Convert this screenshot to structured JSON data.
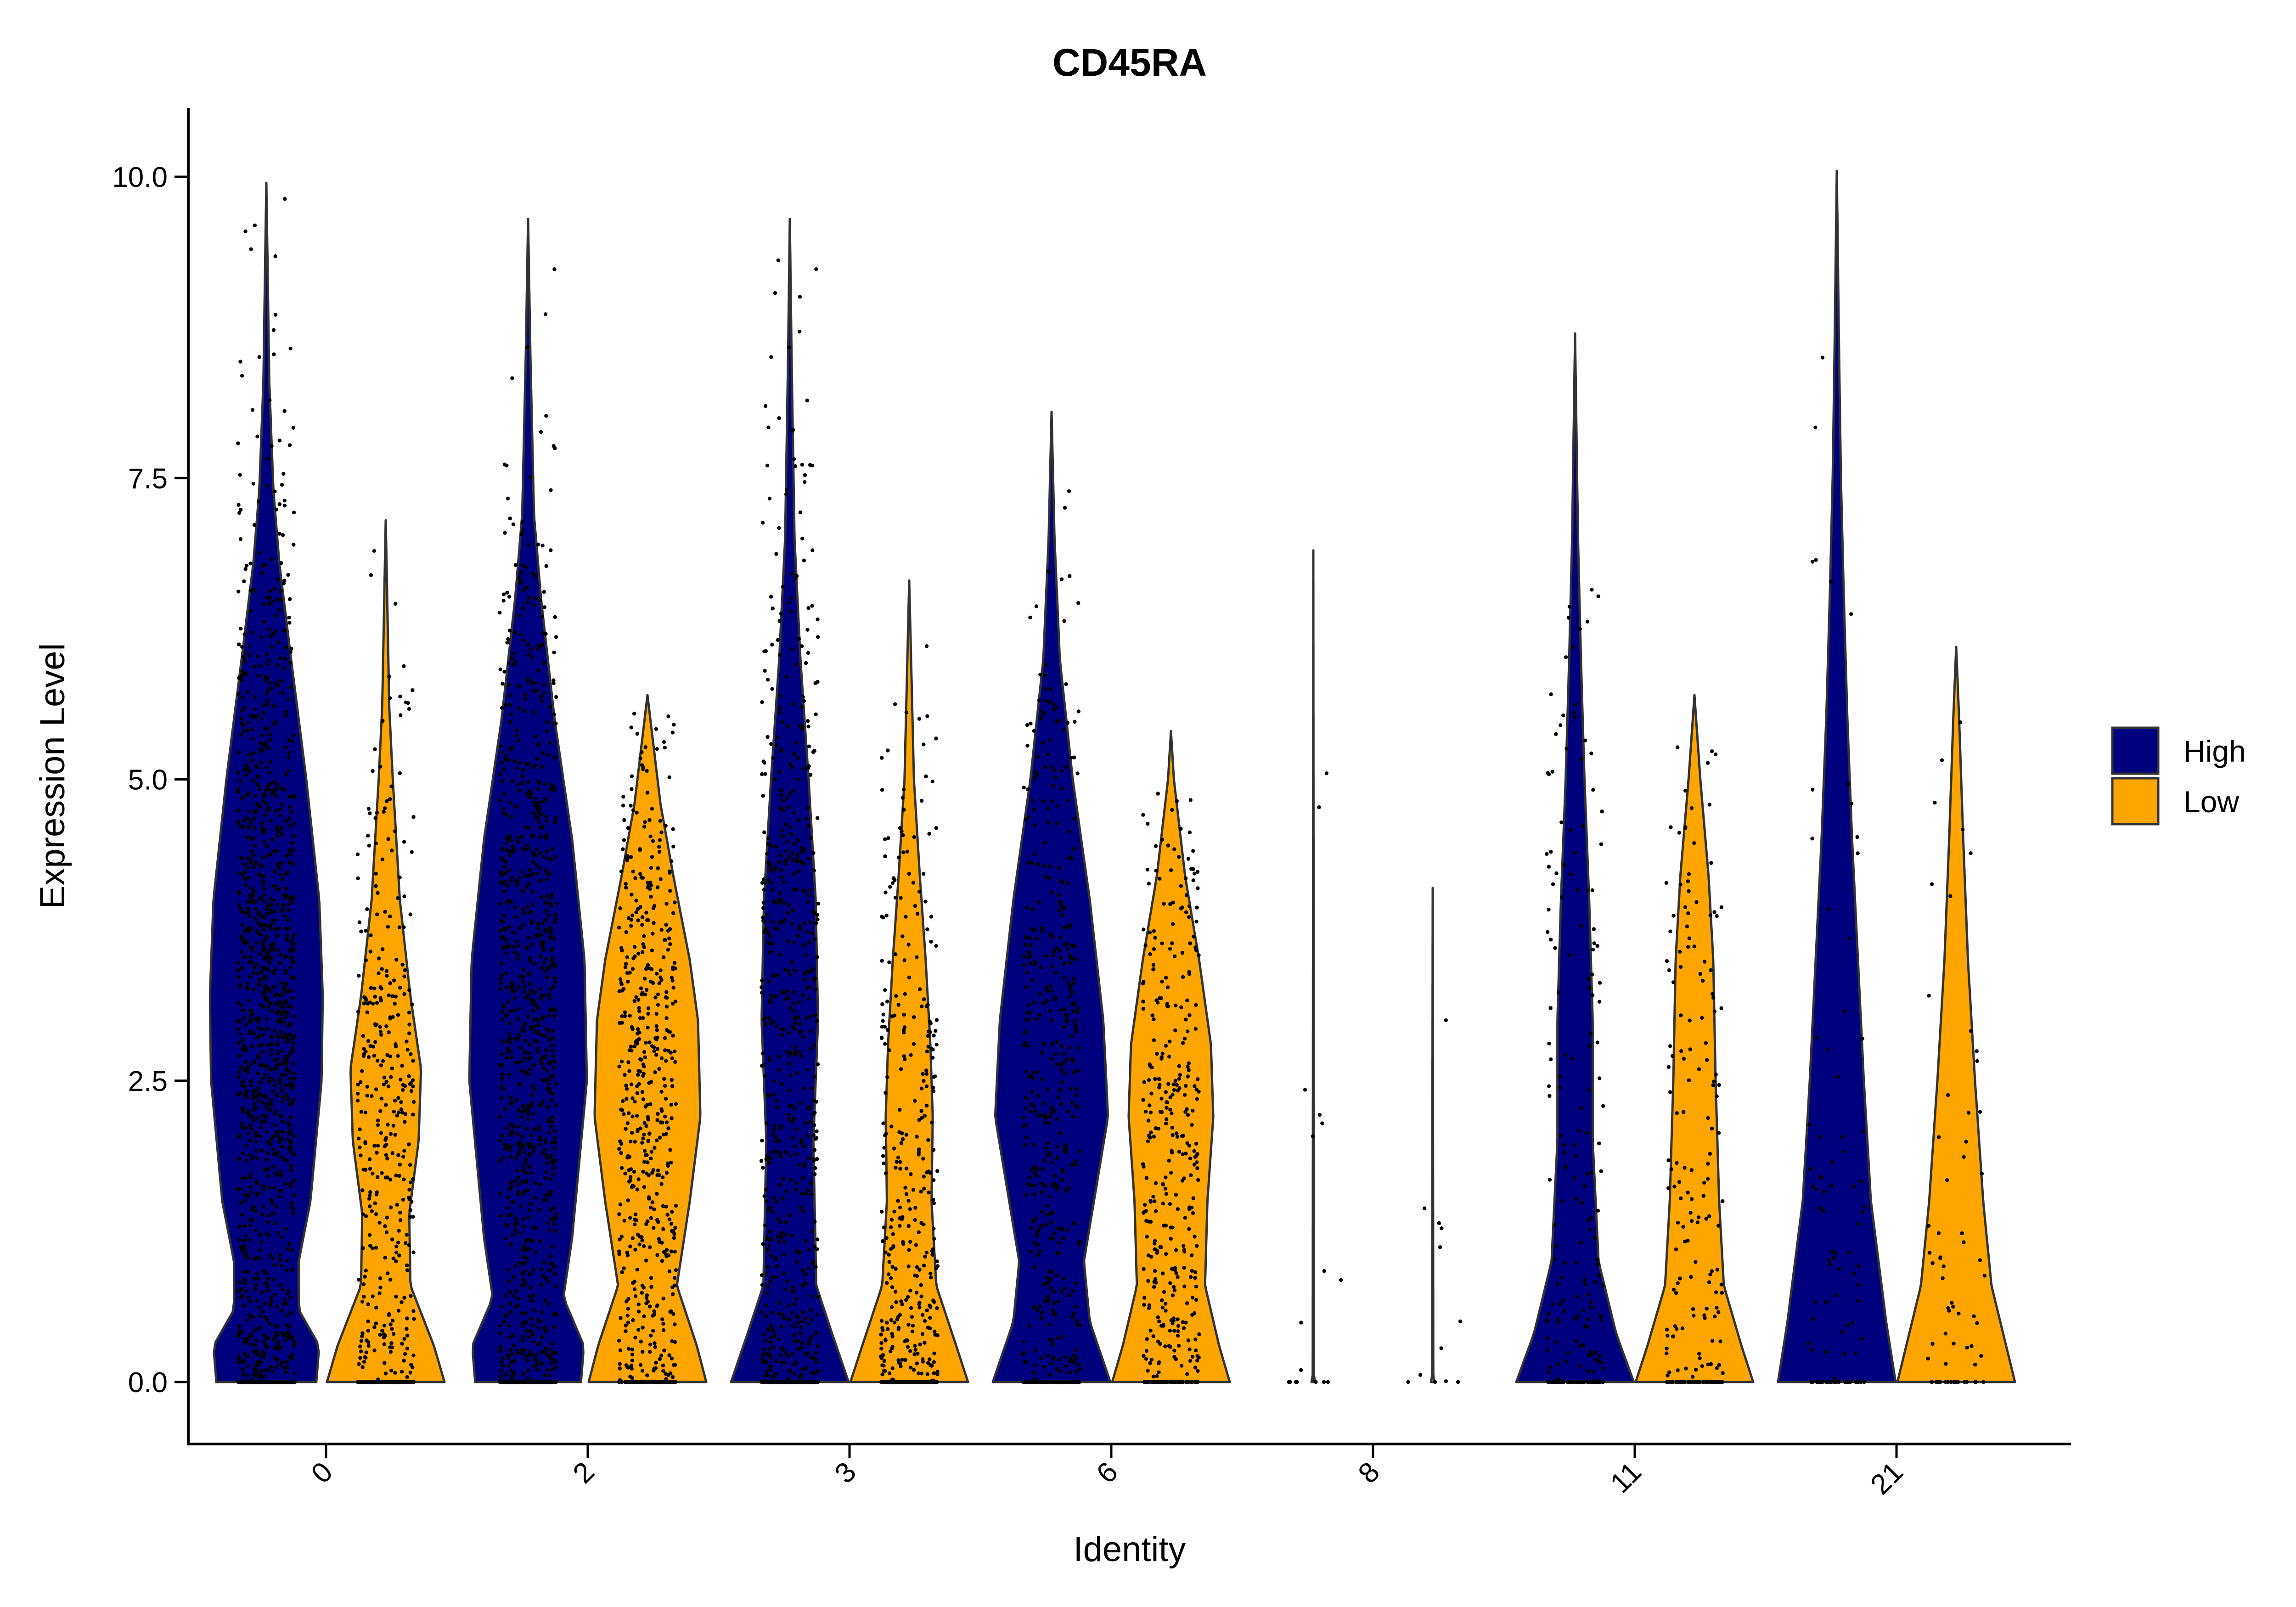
{
  "chart_data": {
    "type": "violin",
    "title": "CD45RA",
    "xlabel": "Identity",
    "ylabel": "Expression Level",
    "ylim": [
      -0.5,
      10.6
    ],
    "yticks": [
      0.0,
      2.5,
      5.0,
      7.5,
      10.0
    ],
    "ytick_labels": [
      "0.0",
      "2.5",
      "5.0",
      "7.5",
      "10.0"
    ],
    "categories": [
      "0",
      "2",
      "3",
      "6",
      "8",
      "11",
      "21"
    ],
    "legend": {
      "position": "right",
      "entries": [
        {
          "name": "High",
          "color": "#00007F"
        },
        {
          "name": "Low",
          "color": "#FFA500"
        }
      ]
    },
    "grid": false,
    "jitter_points": true,
    "series": [
      {
        "name": "High",
        "color": "#00007F",
        "max": [
          9.95,
          9.65,
          9.65,
          8.05,
          6.9,
          8.7,
          10.05
        ],
        "cell_count_relative": [
          1.0,
          0.8,
          0.6,
          0.4,
          0.04,
          0.18,
          0.07
        ],
        "profiles": [
          [
            [
              0,
              0.85
            ],
            [
              0.3,
              0.9
            ],
            [
              0.6,
              0.55
            ],
            [
              1.0,
              0.55
            ],
            [
              1.5,
              0.75
            ],
            [
              2.5,
              0.94
            ],
            [
              3.2,
              0.96
            ],
            [
              4.0,
              0.9
            ],
            [
              5.0,
              0.68
            ],
            [
              6.0,
              0.42
            ],
            [
              6.8,
              0.22
            ],
            [
              7.4,
              0.12
            ],
            [
              8.3,
              0.05
            ],
            [
              9.95,
              0
            ]
          ],
          [
            [
              0,
              0.9
            ],
            [
              0.3,
              0.95
            ],
            [
              0.7,
              0.6
            ],
            [
              1.2,
              0.75
            ],
            [
              2.5,
              1.0
            ],
            [
              3.5,
              0.96
            ],
            [
              4.5,
              0.75
            ],
            [
              5.5,
              0.45
            ],
            [
              6.5,
              0.22
            ],
            [
              7.2,
              0.1
            ],
            [
              8.5,
              0.04
            ],
            [
              9.65,
              0
            ]
          ],
          [
            [
              0,
              1.0
            ],
            [
              0.4,
              0.72
            ],
            [
              0.8,
              0.45
            ],
            [
              2.0,
              0.4
            ],
            [
              3.0,
              0.48
            ],
            [
              4.0,
              0.44
            ],
            [
              5.0,
              0.32
            ],
            [
              6.0,
              0.18
            ],
            [
              7.0,
              0.08
            ],
            [
              8.5,
              0.03
            ],
            [
              9.65,
              0
            ]
          ],
          [
            [
              0,
              1.0
            ],
            [
              0.5,
              0.65
            ],
            [
              1.0,
              0.55
            ],
            [
              2.2,
              0.96
            ],
            [
              3.0,
              0.88
            ],
            [
              4.0,
              0.65
            ],
            [
              5.0,
              0.36
            ],
            [
              6.0,
              0.14
            ],
            [
              7.0,
              0.05
            ],
            [
              8.05,
              0
            ]
          ],
          [
            [
              0,
              0.03
            ],
            [
              0.05,
              0.01
            ],
            [
              6.9,
              0
            ]
          ],
          [
            [
              0,
              1.0
            ],
            [
              0.4,
              0.7
            ],
            [
              1.0,
              0.4
            ],
            [
              2.0,
              0.3
            ],
            [
              3.0,
              0.3
            ],
            [
              4.0,
              0.24
            ],
            [
              5.0,
              0.16
            ],
            [
              6.0,
              0.1
            ],
            [
              7.0,
              0.05
            ],
            [
              8.7,
              0
            ]
          ],
          [
            [
              0,
              1.0
            ],
            [
              0.5,
              0.84
            ],
            [
              1.5,
              0.58
            ],
            [
              2.5,
              0.46
            ],
            [
              3.5,
              0.36
            ],
            [
              4.5,
              0.26
            ],
            [
              5.5,
              0.18
            ],
            [
              6.5,
              0.12
            ],
            [
              7.5,
              0.07
            ],
            [
              8.5,
              0.04
            ],
            [
              10.05,
              0
            ]
          ]
        ]
      },
      {
        "name": "Low",
        "color": "#FFA500",
        "max": [
          7.15,
          5.7,
          6.65,
          5.4,
          4.1,
          5.7,
          6.1
        ],
        "cell_count_relative": [
          0.35,
          0.45,
          0.35,
          0.3,
          0.03,
          0.15,
          0.05
        ],
        "profiles": [
          [
            [
              0,
              1.0
            ],
            [
              0.3,
              0.82
            ],
            [
              0.8,
              0.42
            ],
            [
              1.4,
              0.4
            ],
            [
              2.0,
              0.56
            ],
            [
              2.6,
              0.6
            ],
            [
              3.2,
              0.42
            ],
            [
              4.0,
              0.24
            ],
            [
              5.0,
              0.12
            ],
            [
              5.6,
              0.06
            ],
            [
              7.15,
              0
            ]
          ],
          [
            [
              0,
              1.0
            ],
            [
              0.3,
              0.84
            ],
            [
              0.8,
              0.5
            ],
            [
              1.5,
              0.72
            ],
            [
              2.2,
              0.9
            ],
            [
              3.0,
              0.86
            ],
            [
              3.5,
              0.72
            ],
            [
              4.2,
              0.44
            ],
            [
              4.8,
              0.22
            ],
            [
              5.7,
              0
            ]
          ],
          [
            [
              0,
              1.0
            ],
            [
              0.3,
              0.8
            ],
            [
              0.8,
              0.46
            ],
            [
              1.5,
              0.38
            ],
            [
              2.2,
              0.4
            ],
            [
              2.8,
              0.36
            ],
            [
              3.5,
              0.28
            ],
            [
              4.2,
              0.18
            ],
            [
              5.0,
              0.08
            ],
            [
              6.65,
              0
            ]
          ],
          [
            [
              0,
              1.0
            ],
            [
              0.3,
              0.82
            ],
            [
              0.8,
              0.58
            ],
            [
              1.5,
              0.62
            ],
            [
              2.2,
              0.72
            ],
            [
              2.8,
              0.68
            ],
            [
              3.5,
              0.48
            ],
            [
              4.2,
              0.24
            ],
            [
              5.0,
              0.05
            ],
            [
              5.4,
              0
            ]
          ],
          [
            [
              0,
              0.03
            ],
            [
              0.05,
              0.01
            ],
            [
              4.1,
              0
            ]
          ],
          [
            [
              0,
              1.0
            ],
            [
              0.3,
              0.8
            ],
            [
              0.8,
              0.5
            ],
            [
              1.5,
              0.42
            ],
            [
              2.5,
              0.36
            ],
            [
              3.5,
              0.32
            ],
            [
              4.2,
              0.24
            ],
            [
              5.0,
              0.1
            ],
            [
              5.7,
              0
            ]
          ],
          [
            [
              0,
              1.0
            ],
            [
              0.3,
              0.85
            ],
            [
              0.8,
              0.6
            ],
            [
              1.5,
              0.46
            ],
            [
              2.5,
              0.32
            ],
            [
              3.5,
              0.2
            ],
            [
              4.5,
              0.12
            ],
            [
              5.5,
              0.05
            ],
            [
              6.1,
              0
            ]
          ]
        ]
      }
    ]
  }
}
